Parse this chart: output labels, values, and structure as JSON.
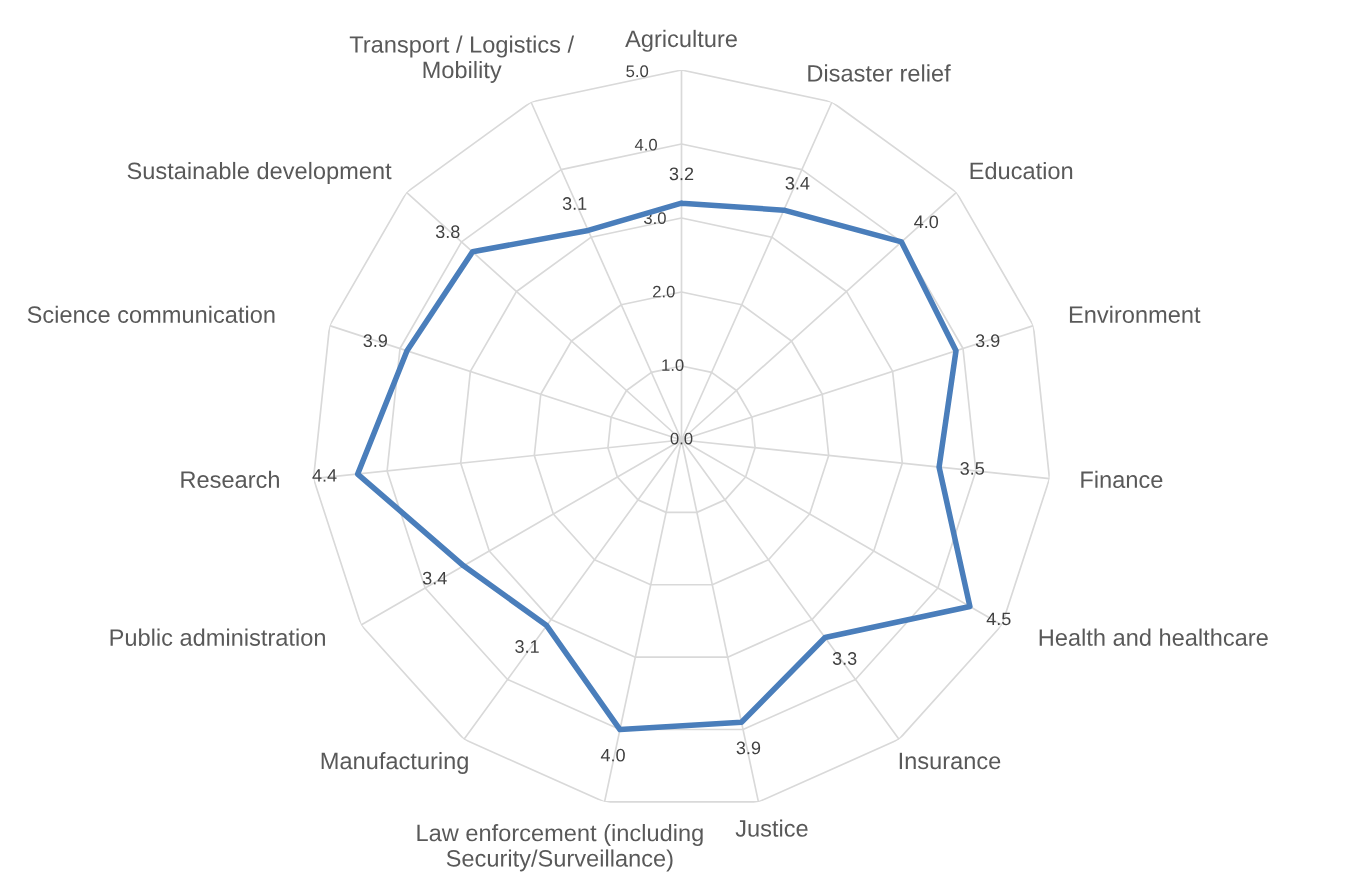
{
  "chart_data": {
    "type": "radar",
    "categories": [
      "Agriculture",
      "Disaster relief",
      "Education",
      "Environment",
      "Finance",
      "Health and healthcare",
      "Insurance",
      "Justice",
      "Law enforcement (including\nSecurity/Surveillance)",
      "Manufacturing",
      "Public administration",
      "Research",
      "Science communication",
      "Sustainable development",
      "Transport / Logistics /\nMobility"
    ],
    "series": [
      {
        "color": "#4a7ebb",
        "values": [
          3.2,
          3.4,
          4.0,
          3.9,
          3.5,
          4.5,
          3.3,
          3.9,
          4.0,
          3.1,
          3.4,
          4.4,
          3.9,
          3.8,
          3.1
        ],
        "value_labels": [
          "3.2",
          "3.4",
          "4.0",
          "3.9",
          "3.5",
          "4.5",
          "3.3",
          "3.9",
          "4.0",
          "3.1",
          "3.4",
          "4.4",
          "3.9",
          "3.8",
          "3.1"
        ]
      }
    ],
    "ylim": [
      0,
      5
    ],
    "yticks": [
      {
        "value": 0,
        "label": "0.0"
      },
      {
        "value": 1,
        "label": "1.0"
      },
      {
        "value": 2,
        "label": "2.0"
      },
      {
        "value": 3,
        "label": "3.0"
      },
      {
        "value": 4,
        "label": "4.0"
      },
      {
        "value": 5,
        "label": "5.0"
      }
    ],
    "grid": true,
    "legend": false
  }
}
